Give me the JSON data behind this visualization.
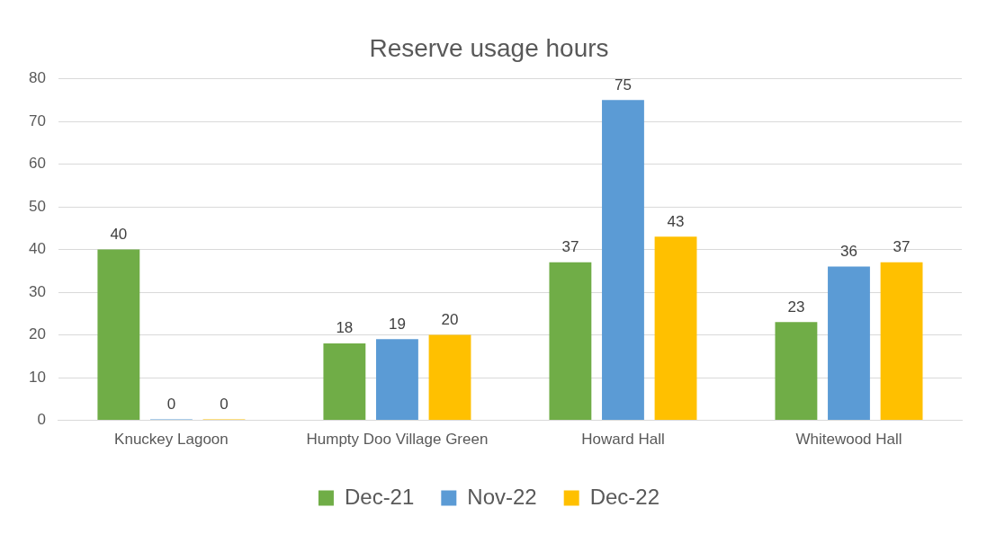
{
  "chart_data": {
    "type": "bar",
    "title": "Reserve usage hours",
    "categories": [
      "Knuckey Lagoon",
      "Humpty Doo Village Green",
      "Howard Hall",
      "Whitewood Hall"
    ],
    "series": [
      {
        "name": "Dec-21",
        "color": "#70ad47",
        "values": [
          40,
          18,
          37,
          23
        ]
      },
      {
        "name": "Nov-22",
        "color": "#5b9bd5",
        "values": [
          0,
          19,
          75,
          36
        ]
      },
      {
        "name": "Dec-22",
        "color": "#ffc000",
        "values": [
          0,
          20,
          43,
          37
        ]
      }
    ],
    "ylim": [
      0,
      80
    ],
    "yticks": [
      0,
      10,
      20,
      30,
      40,
      50,
      60,
      70,
      80
    ],
    "grid": "y",
    "legend": "bottom",
    "data_labels": true
  }
}
